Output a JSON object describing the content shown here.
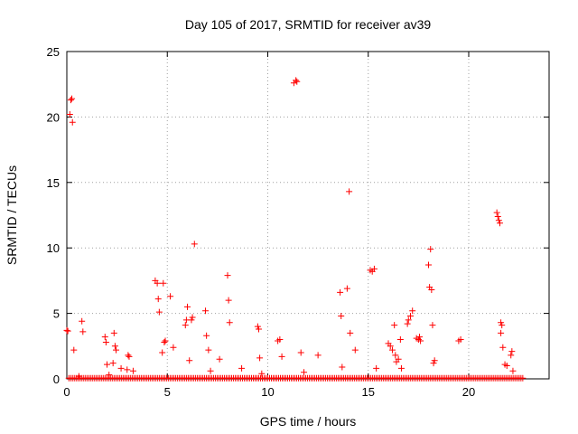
{
  "chart_data": {
    "type": "scatter",
    "title": "Day 105 of 2017, SRMTID for receiver av39",
    "xlabel": "GPS time / hours",
    "ylabel": "SRMTID / TECUs",
    "xlim": [
      0,
      24
    ],
    "ylim": [
      0,
      25
    ],
    "xticks": [
      0,
      5,
      10,
      15,
      20
    ],
    "xtick_labels": [
      "0",
      "5",
      "10",
      "15",
      "20"
    ],
    "yticks": [
      0,
      5,
      10,
      15,
      20,
      25
    ],
    "ytick_labels": [
      "0",
      "5",
      "10",
      "15",
      "20",
      "25"
    ],
    "grid": true,
    "marker": "plus",
    "color": "#ff0000",
    "baseline": {
      "x_start": 0.1,
      "x_end": 22.7,
      "y": 0.05
    },
    "points": [
      {
        "x": 0.0,
        "y": 3.7
      },
      {
        "x": 0.05,
        "y": 3.65
      },
      {
        "x": 0.15,
        "y": 20.2
      },
      {
        "x": 0.2,
        "y": 21.3
      },
      {
        "x": 0.25,
        "y": 21.4
      },
      {
        "x": 0.28,
        "y": 19.6
      },
      {
        "x": 0.35,
        "y": 2.2
      },
      {
        "x": 0.6,
        "y": 0.2
      },
      {
        "x": 0.75,
        "y": 4.4
      },
      {
        "x": 0.8,
        "y": 3.6
      },
      {
        "x": 1.9,
        "y": 3.2
      },
      {
        "x": 1.95,
        "y": 2.8
      },
      {
        "x": 2.0,
        "y": 1.1
      },
      {
        "x": 2.1,
        "y": 0.3
      },
      {
        "x": 2.3,
        "y": 1.2
      },
      {
        "x": 2.35,
        "y": 3.5
      },
      {
        "x": 2.4,
        "y": 2.5
      },
      {
        "x": 2.45,
        "y": 2.2
      },
      {
        "x": 2.7,
        "y": 0.8
      },
      {
        "x": 3.0,
        "y": 0.7
      },
      {
        "x": 3.05,
        "y": 1.8
      },
      {
        "x": 3.1,
        "y": 1.7
      },
      {
        "x": 3.3,
        "y": 0.6
      },
      {
        "x": 4.4,
        "y": 7.5
      },
      {
        "x": 4.5,
        "y": 7.3
      },
      {
        "x": 4.55,
        "y": 6.1
      },
      {
        "x": 4.6,
        "y": 5.1
      },
      {
        "x": 4.75,
        "y": 2.0
      },
      {
        "x": 4.8,
        "y": 7.3
      },
      {
        "x": 4.85,
        "y": 2.8
      },
      {
        "x": 4.9,
        "y": 2.9
      },
      {
        "x": 5.15,
        "y": 6.3
      },
      {
        "x": 5.3,
        "y": 2.4
      },
      {
        "x": 5.9,
        "y": 4.1
      },
      {
        "x": 5.95,
        "y": 4.5
      },
      {
        "x": 6.0,
        "y": 5.5
      },
      {
        "x": 6.1,
        "y": 1.4
      },
      {
        "x": 6.2,
        "y": 4.5
      },
      {
        "x": 6.25,
        "y": 4.7
      },
      {
        "x": 6.35,
        "y": 10.3
      },
      {
        "x": 6.9,
        "y": 5.2
      },
      {
        "x": 6.95,
        "y": 3.3
      },
      {
        "x": 7.05,
        "y": 2.2
      },
      {
        "x": 7.15,
        "y": 0.6
      },
      {
        "x": 7.6,
        "y": 1.5
      },
      {
        "x": 8.0,
        "y": 7.9
      },
      {
        "x": 8.05,
        "y": 6.0
      },
      {
        "x": 8.1,
        "y": 4.3
      },
      {
        "x": 8.7,
        "y": 0.8
      },
      {
        "x": 9.5,
        "y": 4.0
      },
      {
        "x": 9.55,
        "y": 3.8
      },
      {
        "x": 9.6,
        "y": 1.6
      },
      {
        "x": 9.7,
        "y": 0.4
      },
      {
        "x": 10.5,
        "y": 2.9
      },
      {
        "x": 10.6,
        "y": 3.0
      },
      {
        "x": 10.7,
        "y": 1.7
      },
      {
        "x": 11.3,
        "y": 22.6
      },
      {
        "x": 11.4,
        "y": 22.8
      },
      {
        "x": 11.45,
        "y": 22.7
      },
      {
        "x": 11.65,
        "y": 2.0
      },
      {
        "x": 11.8,
        "y": 0.5
      },
      {
        "x": 12.5,
        "y": 1.8
      },
      {
        "x": 13.6,
        "y": 6.6
      },
      {
        "x": 13.65,
        "y": 4.8
      },
      {
        "x": 13.7,
        "y": 0.9
      },
      {
        "x": 13.95,
        "y": 6.9
      },
      {
        "x": 14.05,
        "y": 14.3
      },
      {
        "x": 14.1,
        "y": 3.5
      },
      {
        "x": 14.35,
        "y": 2.2
      },
      {
        "x": 15.1,
        "y": 8.3
      },
      {
        "x": 15.2,
        "y": 8.2
      },
      {
        "x": 15.3,
        "y": 8.4
      },
      {
        "x": 15.4,
        "y": 0.8
      },
      {
        "x": 16.0,
        "y": 2.7
      },
      {
        "x": 16.1,
        "y": 2.5
      },
      {
        "x": 16.2,
        "y": 2.2
      },
      {
        "x": 16.3,
        "y": 4.1
      },
      {
        "x": 16.35,
        "y": 1.8
      },
      {
        "x": 16.4,
        "y": 1.3
      },
      {
        "x": 16.5,
        "y": 1.5
      },
      {
        "x": 16.6,
        "y": 3.0
      },
      {
        "x": 16.65,
        "y": 0.8
      },
      {
        "x": 16.95,
        "y": 4.2
      },
      {
        "x": 17.0,
        "y": 4.5
      },
      {
        "x": 17.1,
        "y": 4.8
      },
      {
        "x": 17.2,
        "y": 5.2
      },
      {
        "x": 17.4,
        "y": 3.1
      },
      {
        "x": 17.5,
        "y": 3.0
      },
      {
        "x": 17.55,
        "y": 3.2
      },
      {
        "x": 17.6,
        "y": 2.9
      },
      {
        "x": 18.0,
        "y": 8.7
      },
      {
        "x": 18.05,
        "y": 7.0
      },
      {
        "x": 18.1,
        "y": 9.9
      },
      {
        "x": 18.15,
        "y": 6.8
      },
      {
        "x": 18.2,
        "y": 4.1
      },
      {
        "x": 18.25,
        "y": 1.2
      },
      {
        "x": 18.3,
        "y": 1.4
      },
      {
        "x": 19.5,
        "y": 2.9
      },
      {
        "x": 19.6,
        "y": 3.0
      },
      {
        "x": 21.4,
        "y": 12.7
      },
      {
        "x": 21.45,
        "y": 12.4
      },
      {
        "x": 21.5,
        "y": 12.1
      },
      {
        "x": 21.55,
        "y": 11.9
      },
      {
        "x": 21.6,
        "y": 4.3
      },
      {
        "x": 21.65,
        "y": 4.1
      },
      {
        "x": 21.6,
        "y": 3.5
      },
      {
        "x": 21.7,
        "y": 2.4
      },
      {
        "x": 21.8,
        "y": 1.1
      },
      {
        "x": 21.9,
        "y": 1.0
      },
      {
        "x": 22.1,
        "y": 1.8
      },
      {
        "x": 22.15,
        "y": 2.1
      },
      {
        "x": 22.2,
        "y": 0.6
      }
    ]
  }
}
